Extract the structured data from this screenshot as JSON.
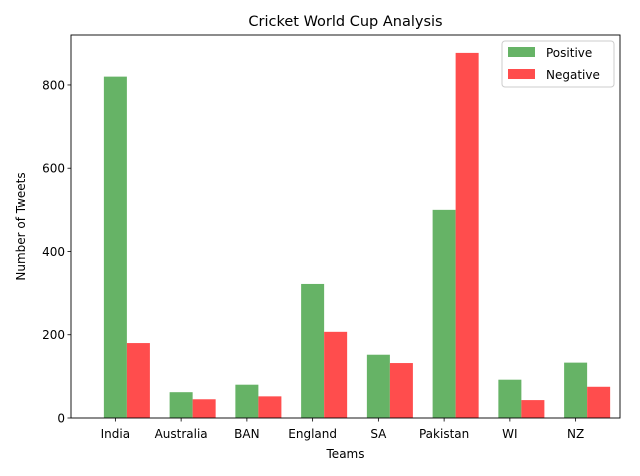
{
  "chart_data": {
    "type": "bar",
    "title": "Cricket World Cup Analysis",
    "xlabel": "Teams",
    "ylabel": "Number of Tweets",
    "categories": [
      "India",
      "Australia",
      "BAN",
      "England",
      "SA",
      "Pakistan",
      "WI",
      "NZ"
    ],
    "series": [
      {
        "name": "Positive",
        "color": "#66b366",
        "values": [
          820,
          62,
          80,
          322,
          152,
          500,
          92,
          133
        ]
      },
      {
        "name": "Negative",
        "color": "#ff4d4d",
        "values": [
          180,
          45,
          52,
          207,
          132,
          877,
          43,
          75
        ]
      }
    ],
    "ylim": [
      0,
      920
    ],
    "yticks": [
      0,
      200,
      400,
      600,
      800
    ],
    "grid": false,
    "legend_position": "top-right"
  }
}
